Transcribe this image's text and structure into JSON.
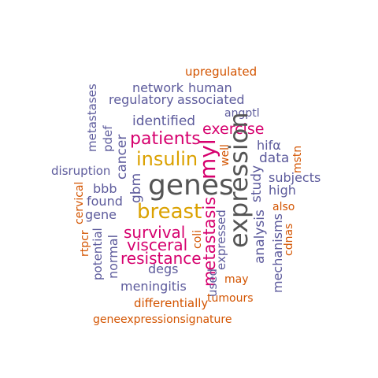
{
  "colors": {
    "orange": "#d35400",
    "slate": "#5d5b9c",
    "magenta": "#d6006e",
    "gold": "#dba100",
    "gray": "#555555"
  },
  "words": {
    "genes": "genes",
    "expression": "expression",
    "myl": "myl",
    "breast": "breast",
    "insulin": "insulin",
    "patients": "patients",
    "survival": "survival",
    "visceral": "visceral",
    "resistance": "resistance",
    "metastasis": "metastasis",
    "exercise": "exercise",
    "upregulated": "upregulated",
    "network": "network",
    "human": "human",
    "regulatory": "regulatory",
    "associated": "associated",
    "identified": "identified",
    "angptl": "angptl",
    "metastases": "metastases",
    "pdef": "pdef",
    "cancer": "cancer",
    "disruption": "disruption",
    "bbb": "bbb",
    "gbm": "gbm",
    "found": "found",
    "gene": "gene",
    "cervical": "cervical",
    "rtpcr": "rtpcr",
    "potential": "potential",
    "normal": "normal",
    "degs": "degs",
    "meningitis": "meningitis",
    "used": "used",
    "differentially": "differentially",
    "geneexpressionsignature": "geneexpressionsignature",
    "tumours": "tumours",
    "may": "may",
    "expressed": "expressed",
    "coli": "coli",
    "well": "well",
    "hifa": "hifα",
    "data": "data",
    "mstn": "mstn",
    "subjects": "subjects",
    "high": "high",
    "study": "study",
    "analysis": "analysis",
    "also": "also",
    "mechanisms": "mechanisms",
    "cdnas": "cdnas"
  }
}
